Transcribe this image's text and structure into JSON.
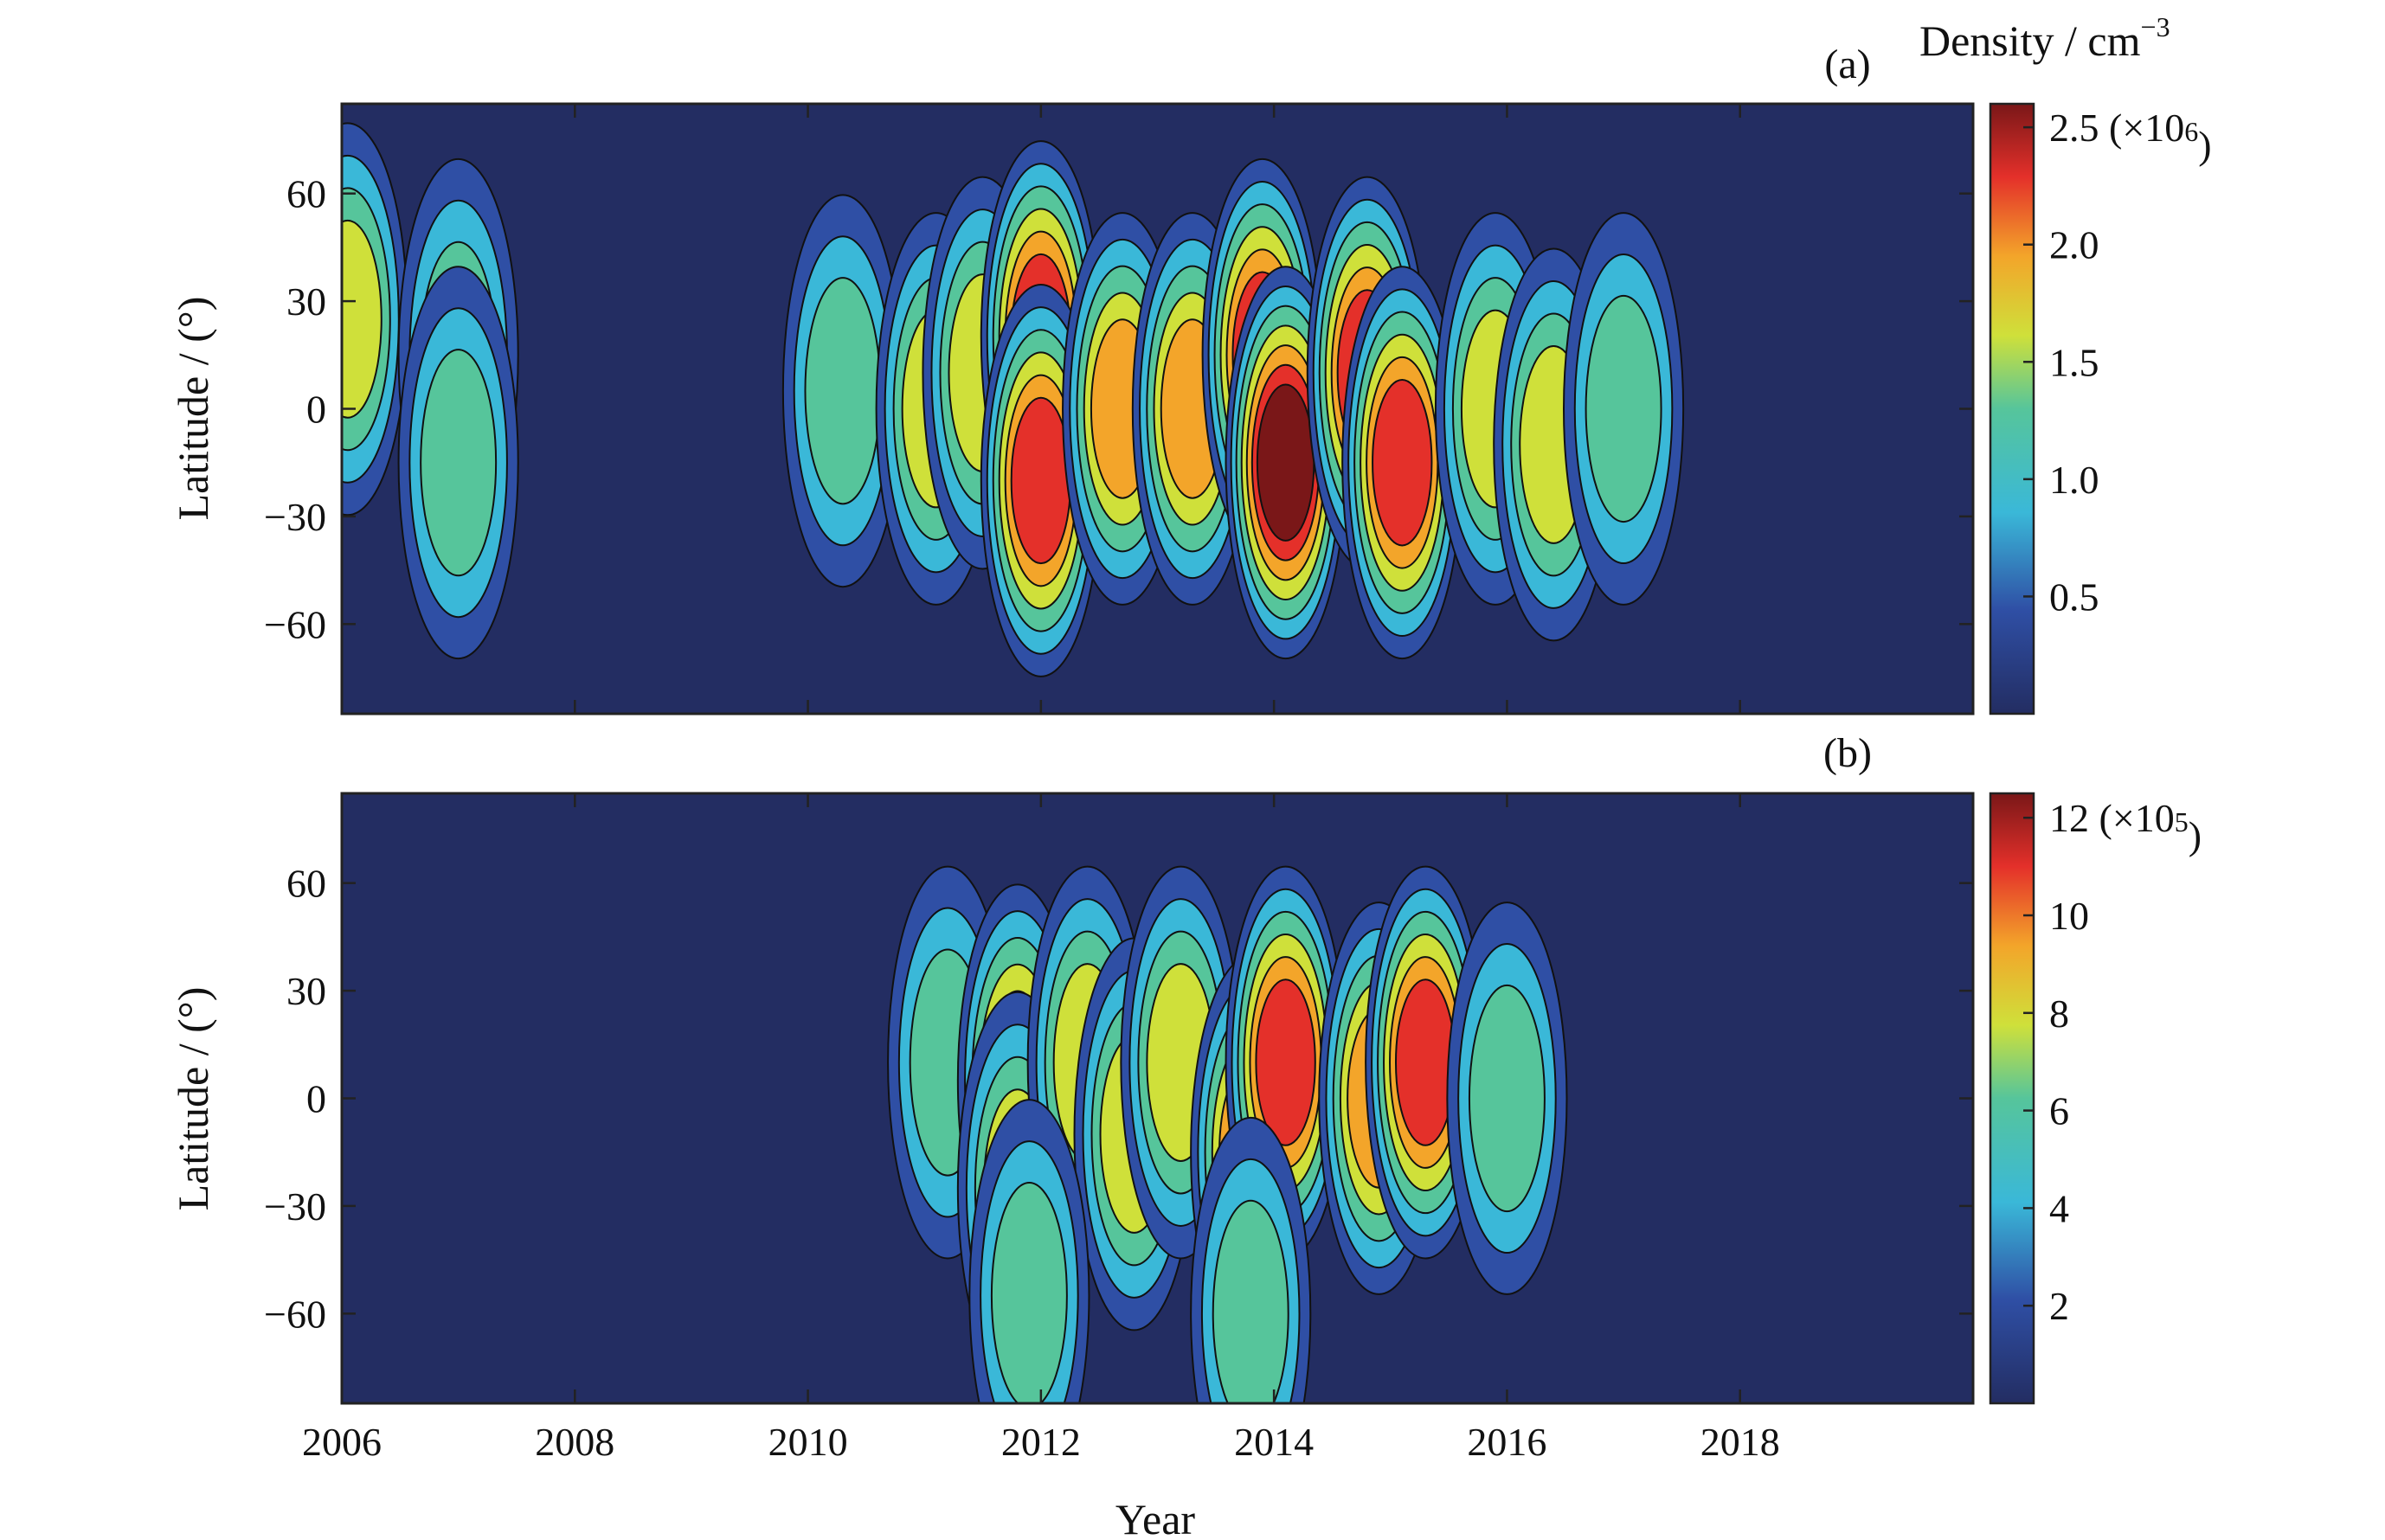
{
  "figure": {
    "xlabel": "Year",
    "colorbar_title_a": "Density / cm",
    "colorbar_title_a_exp": "−3"
  },
  "chart_data": [
    {
      "type": "heatmap",
      "panel_label": "(a)",
      "xlabel": "",
      "ylabel": "Latitude / (°)",
      "x_range": [
        2006,
        2020
      ],
      "y_range": [
        -85,
        85
      ],
      "y_ticks": [
        "60",
        "30",
        "0",
        "−30",
        "−60"
      ],
      "y_tick_values": [
        60,
        30,
        0,
        -30,
        -60
      ],
      "x_ticks": [],
      "colorbar": {
        "range": [
          0,
          2.6
        ],
        "ticks": [
          "2.5 (×10",
          "2.0",
          "1.5",
          "1.0",
          "0.5"
        ],
        "tick_values": [
          2.5,
          2.0,
          1.5,
          1.0,
          0.5
        ],
        "multiplier_exp": "6)"
      },
      "peaks": [
        {
          "year": 2006.05,
          "lat": 25,
          "value": 1.6
        },
        {
          "year": 2007.0,
          "lat": 15,
          "value": 1.0
        },
        {
          "year": 2007.0,
          "lat": -15,
          "value": 1.0
        },
        {
          "year": 2010.3,
          "lat": 5,
          "value": 1.0
        },
        {
          "year": 2011.1,
          "lat": 0,
          "value": 1.3
        },
        {
          "year": 2011.5,
          "lat": 10,
          "value": 1.6
        },
        {
          "year": 2012.0,
          "lat": 20,
          "value": 2.3
        },
        {
          "year": 2012.0,
          "lat": -20,
          "value": 2.2
        },
        {
          "year": 2012.7,
          "lat": 0,
          "value": 1.9
        },
        {
          "year": 2013.3,
          "lat": 0,
          "value": 1.9
        },
        {
          "year": 2013.9,
          "lat": 15,
          "value": 2.3
        },
        {
          "year": 2014.1,
          "lat": -15,
          "value": 2.5
        },
        {
          "year": 2014.8,
          "lat": 10,
          "value": 2.2
        },
        {
          "year": 2015.1,
          "lat": -15,
          "value": 2.1
        },
        {
          "year": 2015.9,
          "lat": 0,
          "value": 1.6
        },
        {
          "year": 2016.4,
          "lat": -10,
          "value": 1.4
        },
        {
          "year": 2017.0,
          "lat": 0,
          "value": 1.1
        }
      ]
    },
    {
      "type": "heatmap",
      "panel_label": "(b)",
      "xlabel": "Year",
      "ylabel": "Latitude / (°)",
      "x_range": [
        2006,
        2020
      ],
      "y_range": [
        -85,
        85
      ],
      "y_ticks": [
        "60",
        "30",
        "0",
        "−30",
        "−60"
      ],
      "y_tick_values": [
        60,
        30,
        0,
        -30,
        -60
      ],
      "x_ticks": [
        "2006",
        "2008",
        "2010",
        "2012",
        "2014",
        "2016",
        "2018"
      ],
      "x_tick_values": [
        2006,
        2008,
        2010,
        2012,
        2014,
        2016,
        2018
      ],
      "colorbar": {
        "range": [
          0,
          12.5
        ],
        "ticks": [
          "12 (×10",
          "10",
          "8",
          "6",
          "4",
          "2"
        ],
        "tick_values": [
          12,
          10,
          8,
          6,
          4,
          2
        ],
        "multiplier_exp": "5)"
      },
      "peaks": [
        {
          "year": 2011.2,
          "lat": 10,
          "value": 5.5
        },
        {
          "year": 2011.8,
          "lat": 5,
          "value": 8.5
        },
        {
          "year": 2011.8,
          "lat": -25,
          "value": 8.0
        },
        {
          "year": 2012.4,
          "lat": 10,
          "value": 7.0
        },
        {
          "year": 2012.8,
          "lat": -10,
          "value": 7.5
        },
        {
          "year": 2013.2,
          "lat": 10,
          "value": 7.0
        },
        {
          "year": 2013.8,
          "lat": -15,
          "value": 8.5
        },
        {
          "year": 2014.1,
          "lat": 10,
          "value": 10.5
        },
        {
          "year": 2014.9,
          "lat": 0,
          "value": 8.5
        },
        {
          "year": 2015.3,
          "lat": 10,
          "value": 10.0
        },
        {
          "year": 2016.0,
          "lat": 0,
          "value": 5.0
        },
        {
          "year": 2013.8,
          "lat": -60,
          "value": 5.0
        },
        {
          "year": 2011.9,
          "lat": -55,
          "value": 5.0
        }
      ]
    }
  ]
}
